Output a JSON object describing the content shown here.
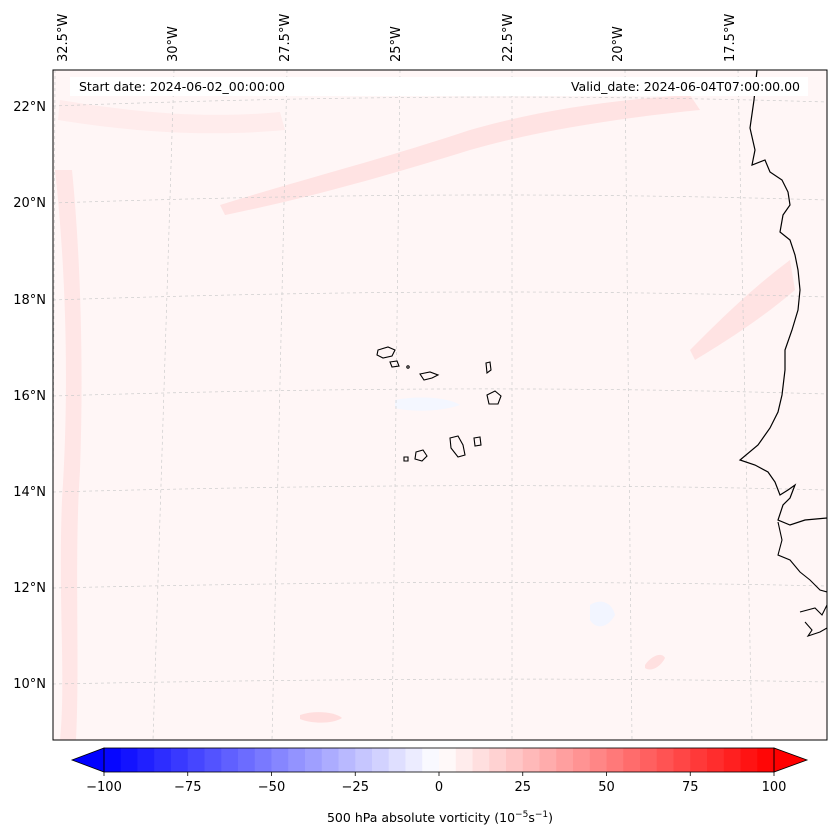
{
  "map": {
    "start_date": "Start date: 2024-06-02_00:00:00",
    "valid_date": "Valid_date: 2024-06-04T07:00:00.00",
    "lon_labels": [
      "32.5°W",
      "30°W",
      "27.5°W",
      "25°W",
      "22.5°W",
      "20°W",
      "17.5°W"
    ],
    "lat_labels": [
      "22°N",
      "20°N",
      "18°N",
      "16°N",
      "14°N",
      "12°N",
      "10°N"
    ],
    "features": [
      "Cape Verde islands",
      "West African coastline"
    ]
  },
  "colorbar": {
    "label": "500 hPa absolute vorticity (10",
    "label_sup1": "−5",
    "label_mid": "s",
    "label_sup2": "−1",
    "label_end": ")",
    "ticks": [
      "−100",
      "−75",
      "−50",
      "−25",
      "0",
      "25",
      "50",
      "75",
      "100"
    ],
    "min": -100,
    "max": 100,
    "low_color": "#0000ff",
    "zero_color": "#ffffff",
    "high_color": "#ff0000"
  }
}
